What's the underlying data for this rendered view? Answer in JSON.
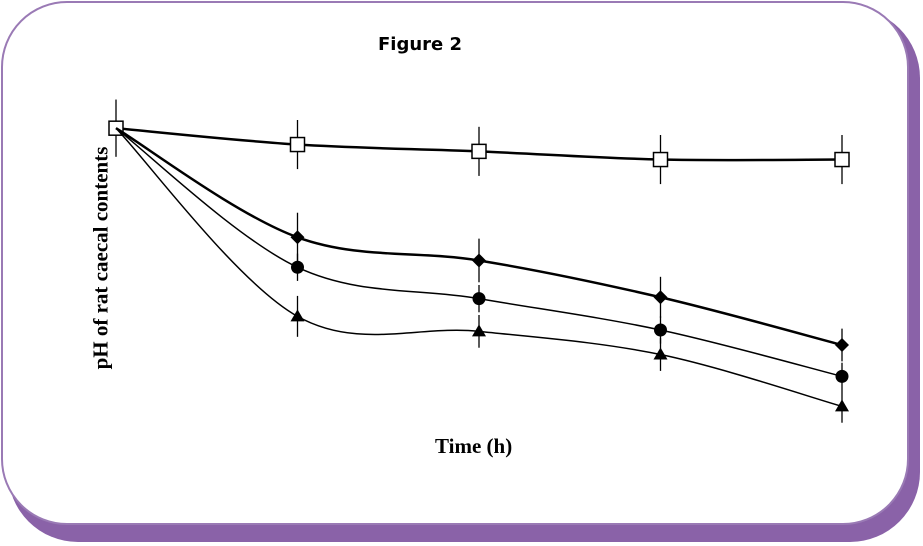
{
  "title": "Figure 2",
  "chart_data": {
    "type": "line",
    "title": "Figure 2",
    "xlabel": "Time (h)",
    "ylabel": "pH of rat caecal contents",
    "x": [
      0,
      1,
      2,
      3,
      4
    ],
    "ylim": [
      5.0,
      7.2
    ],
    "grid": false,
    "legend": "none",
    "series": [
      {
        "marker": "open-square",
        "values": [
          7.14,
          7.02,
          6.97,
          6.91,
          6.91
        ],
        "errors": [
          0.21,
          0.18,
          0.18,
          0.18,
          0.18
        ],
        "stroke": 2.5
      },
      {
        "marker": "diamond",
        "values": [
          7.14,
          6.34,
          6.17,
          5.9,
          5.55
        ],
        "errors": [
          0,
          0.18,
          0.16,
          0.15,
          0.12
        ],
        "stroke": 2.5
      },
      {
        "marker": "circle",
        "values": [
          7.14,
          6.12,
          5.89,
          5.66,
          5.32
        ],
        "errors": [
          0,
          0.1,
          0.1,
          0.1,
          0.1
        ],
        "stroke": 1.5
      },
      {
        "marker": "triangle",
        "values": [
          7.14,
          5.76,
          5.65,
          5.48,
          5.1
        ],
        "errors": [
          0,
          0.15,
          0.12,
          0.12,
          0.12
        ],
        "stroke": 1.5
      }
    ]
  }
}
